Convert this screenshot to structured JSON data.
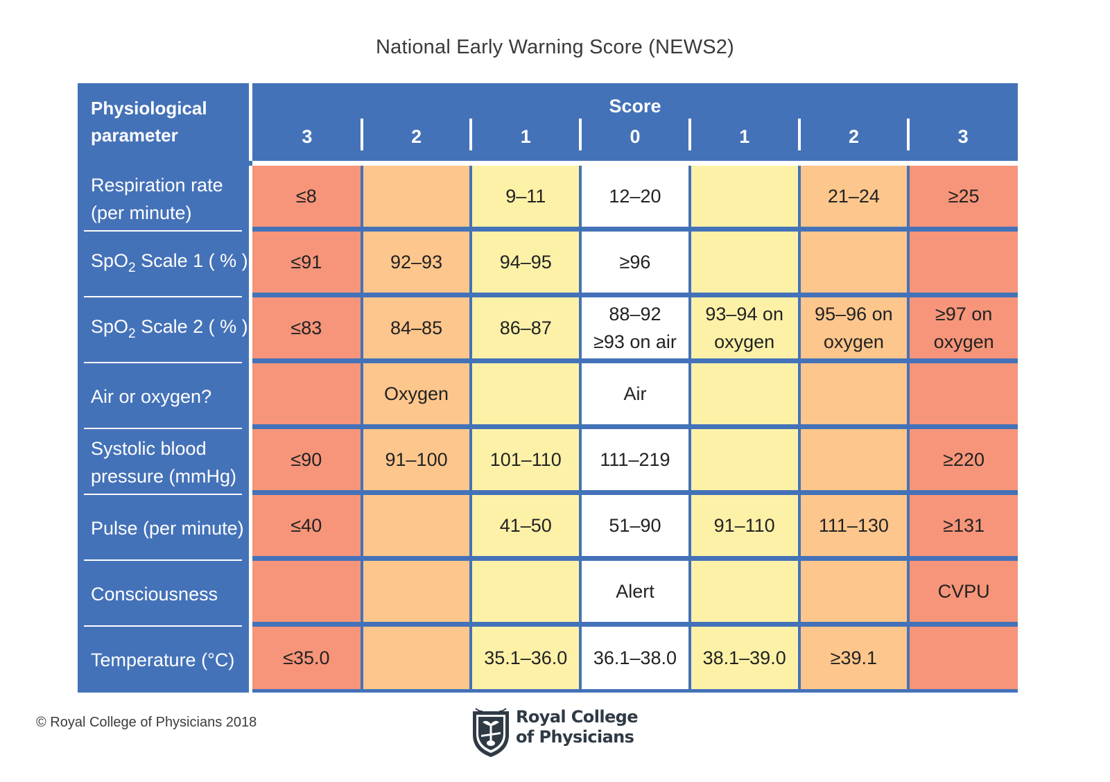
{
  "title": "National Early Warning Score (NEWS2)",
  "header": {
    "param_label": [
      "Physiological",
      "parameter"
    ],
    "score_label": "Score",
    "score_columns": [
      "3",
      "2",
      "1",
      "0",
      "1",
      "2",
      "3"
    ]
  },
  "colors": {
    "header_blue": "#4472b8",
    "score_3": "#f6957a",
    "score_2": "#fdc68c",
    "score_1": "#fdf1a8",
    "score_0": "#ffffff"
  },
  "rows": [
    {
      "param": [
        "Respiration rate",
        "(per minute)"
      ],
      "cells": [
        "≤8",
        "",
        "9–11",
        "12–20",
        "",
        "21–24",
        "≥25"
      ]
    },
    {
      "param_parts": [
        "SpO",
        "2",
        " Scale 1 ( % )"
      ],
      "cells": [
        "≤91",
        "92–93",
        "94–95",
        "≥96",
        "",
        "",
        ""
      ]
    },
    {
      "param_parts": [
        "SpO",
        "2",
        " Scale 2 ( % )"
      ],
      "cells": [
        "≤83",
        "84–85",
        "86–87",
        "88–92\n≥93 on air",
        "93–94 on\noxygen",
        "95–96 on\noxygen",
        "≥97 on\noxygen"
      ]
    },
    {
      "param": [
        "Air or oxygen?"
      ],
      "cells": [
        "",
        "Oxygen",
        "",
        "Air",
        "",
        "",
        ""
      ]
    },
    {
      "param": [
        "Systolic blood",
        "pressure (mmHg)"
      ],
      "cells": [
        "≤90",
        "91–100",
        "101–110",
        "111–219",
        "",
        "",
        "≥220"
      ]
    },
    {
      "param": [
        "Pulse (per minute)"
      ],
      "cells": [
        "≤40",
        "",
        "41–50",
        "51–90",
        "91–110",
        "111–130",
        "≥131"
      ]
    },
    {
      "param": [
        "Consciousness"
      ],
      "cells": [
        "",
        "",
        "",
        "Alert",
        "",
        "",
        "CVPU"
      ]
    },
    {
      "param": [
        "Temperature (°C)"
      ],
      "cells": [
        "≤35.0",
        "",
        "35.1–36.0",
        "36.1–38.0",
        "38.1–39.0",
        "≥39.1",
        ""
      ]
    }
  ],
  "footer": {
    "copyright": "© Royal College of Physicians 2018",
    "logo_text": [
      "Royal College",
      "of Physicians"
    ],
    "logo_icon": "rcp-crest-icon"
  }
}
